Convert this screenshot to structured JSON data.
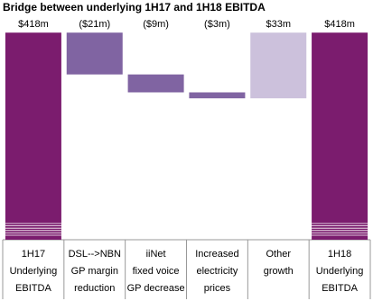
{
  "chart_data": {
    "type": "waterfall",
    "title": "Bridge between underlying 1H17 and 1H18 EBITDA",
    "categories": [
      [
        "1H17",
        "Underlying",
        "EBITDA"
      ],
      [
        "DSL-->NBN",
        "GP margin",
        "reduction"
      ],
      [
        "iiNet",
        "fixed voice",
        "GP decrease"
      ],
      [
        "Increased",
        "electricity",
        "prices"
      ],
      [
        "Other",
        "growth"
      ],
      [
        "1H18",
        "Underlying",
        "EBITDA"
      ]
    ],
    "values": [
      418,
      -21,
      -9,
      -3,
      33,
      418
    ],
    "value_labels": [
      "$418m",
      "($21m)",
      "($9m)",
      "($3m)",
      "$33m",
      "$418m"
    ],
    "measure": [
      "total",
      "relative",
      "relative",
      "relative",
      "relative",
      "total"
    ],
    "colors": {
      "total": "#7b1c6e",
      "decrease": "#8064a2",
      "increase": "#ccc1dc"
    },
    "ylim": [
      314,
      419
    ],
    "axis_break": true
  }
}
